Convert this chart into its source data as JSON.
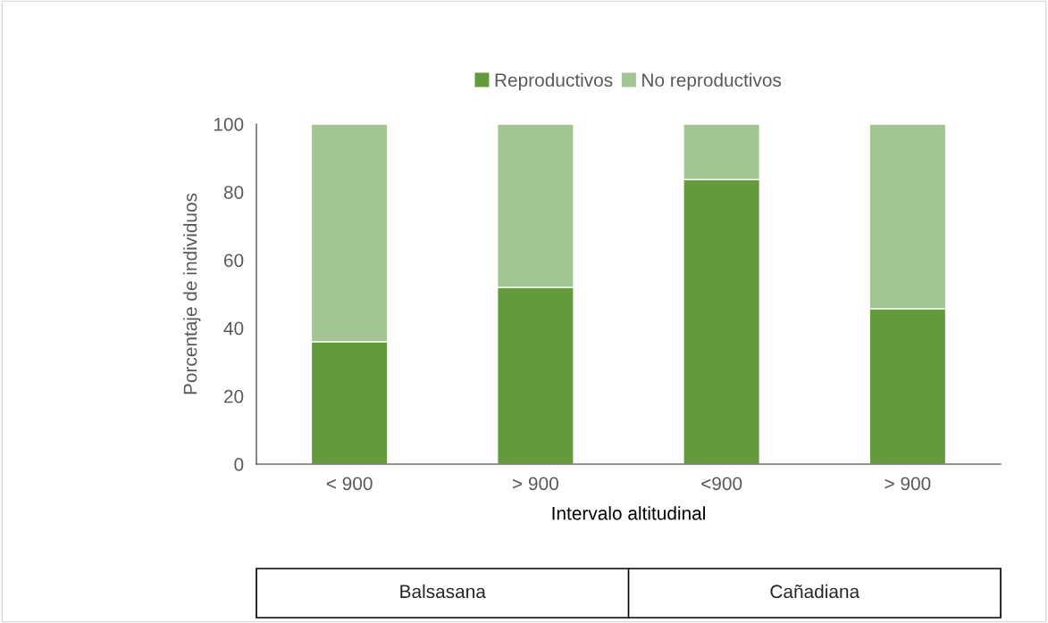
{
  "chart_data": {
    "type": "bar",
    "stacked": true,
    "xlabel": "Intervalo altitudinal",
    "ylabel": "Porcentaje de individuos",
    "categories": [
      "< 900",
      "> 900",
      "<900",
      "> 900"
    ],
    "series": [
      {
        "name": "Reproductivos",
        "color": "#629a3d",
        "values": [
          36,
          52,
          83.7,
          45.7
        ]
      },
      {
        "name": "No reproductivos",
        "color": "#a3c592",
        "values": [
          64,
          48,
          16.3,
          54.3
        ]
      }
    ],
    "ylim": [
      0,
      100
    ],
    "yticks": [
      0,
      20,
      40,
      60,
      80,
      100
    ],
    "grid": false,
    "legend": "top",
    "annotations": [
      "Balsasana",
      "Cañadiana"
    ]
  }
}
